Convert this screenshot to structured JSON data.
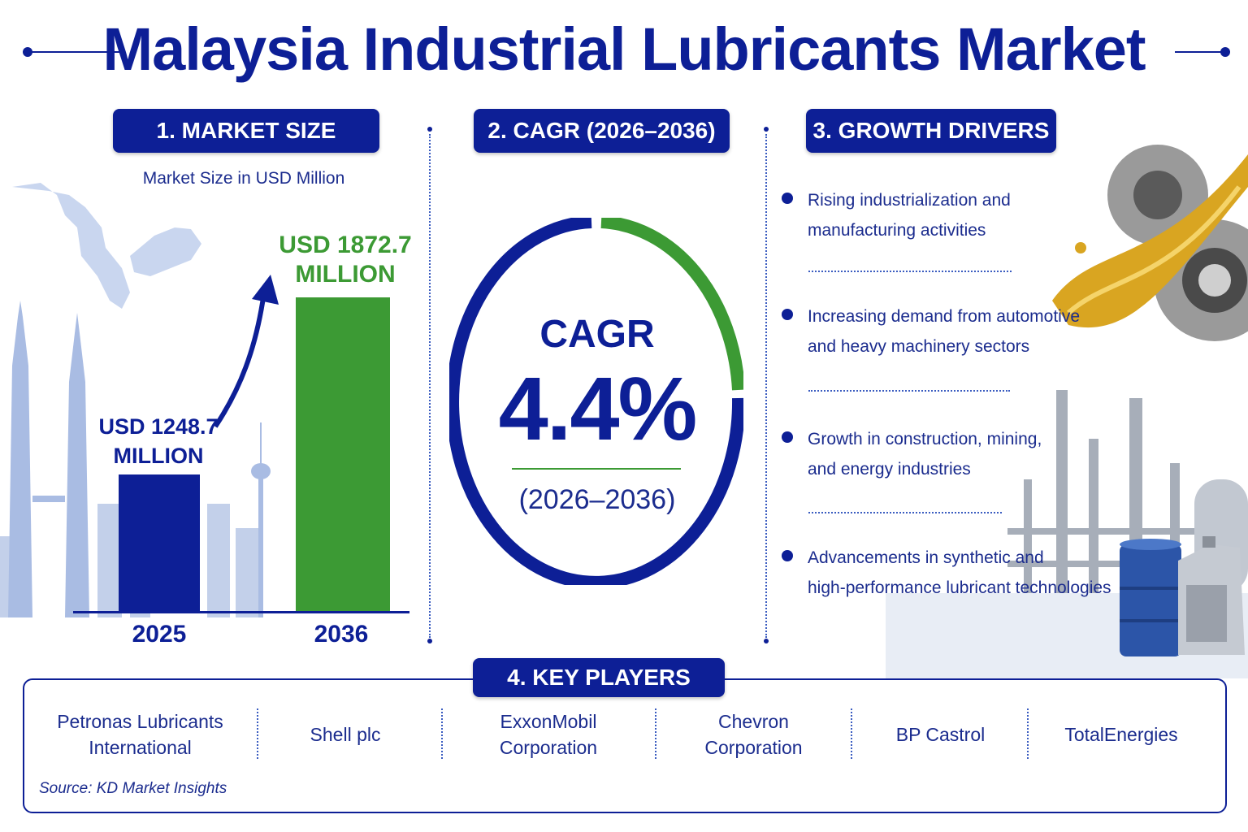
{
  "title": "Malaysia Industrial Lubricants Market",
  "sections": {
    "market_size": "1. MARKET SIZE",
    "cagr": "2. CAGR (2026–2036)",
    "drivers": "3. GROWTH DRIVERS",
    "players": "4. KEY PLAYERS"
  },
  "market_size": {
    "subtitle": "Market Size in USD Million",
    "bars": [
      {
        "year": "2025",
        "label_line1": "USD 1248.7",
        "label_line2": "MILLION",
        "value": 1248.7
      },
      {
        "year": "2036",
        "label_line1": "USD 1872.7",
        "label_line2": "MILLION",
        "value": 1872.7
      }
    ]
  },
  "chart_data": {
    "type": "bar",
    "categories": [
      "2025",
      "2036"
    ],
    "values": [
      1248.7,
      1872.7
    ],
    "title": "Market Size in USD Million"
  },
  "cagr": {
    "word": "CAGR",
    "value": "4.4%",
    "period": "(2026–2036)",
    "colors": {
      "primary": "#0d1f96",
      "accent": "#3c9a34"
    }
  },
  "drivers": [
    {
      "line1": "Rising industrialization and",
      "line2": "manufacturing activities"
    },
    {
      "line1": "Increasing demand from automotive",
      "line2": "and heavy machinery sectors"
    },
    {
      "line1": "Growth in construction, mining,",
      "line2": "and energy industries"
    },
    {
      "line1": "Advancements in synthetic and",
      "line2": "high-performance lubricant technologies"
    }
  ],
  "players": [
    {
      "line1": "Petronas Lubricants",
      "line2": "International"
    },
    {
      "line1": "Shell plc",
      "line2": ""
    },
    {
      "line1": "ExxonMobil",
      "line2": "Corporation"
    },
    {
      "line1": "Chevron",
      "line2": "Corporation"
    },
    {
      "line1": "BP Castrol",
      "line2": ""
    },
    {
      "line1": "TotalEnergies",
      "line2": ""
    }
  ],
  "source": "Source: KD Market Insights",
  "icons": [
    "malaysia-map-illustration",
    "twin-towers-skyline-illustration",
    "growth-arrow-icon",
    "gears-oil-illustration",
    "refinery-illustration",
    "oil-drum-icon",
    "lubricant-jug-icon"
  ]
}
